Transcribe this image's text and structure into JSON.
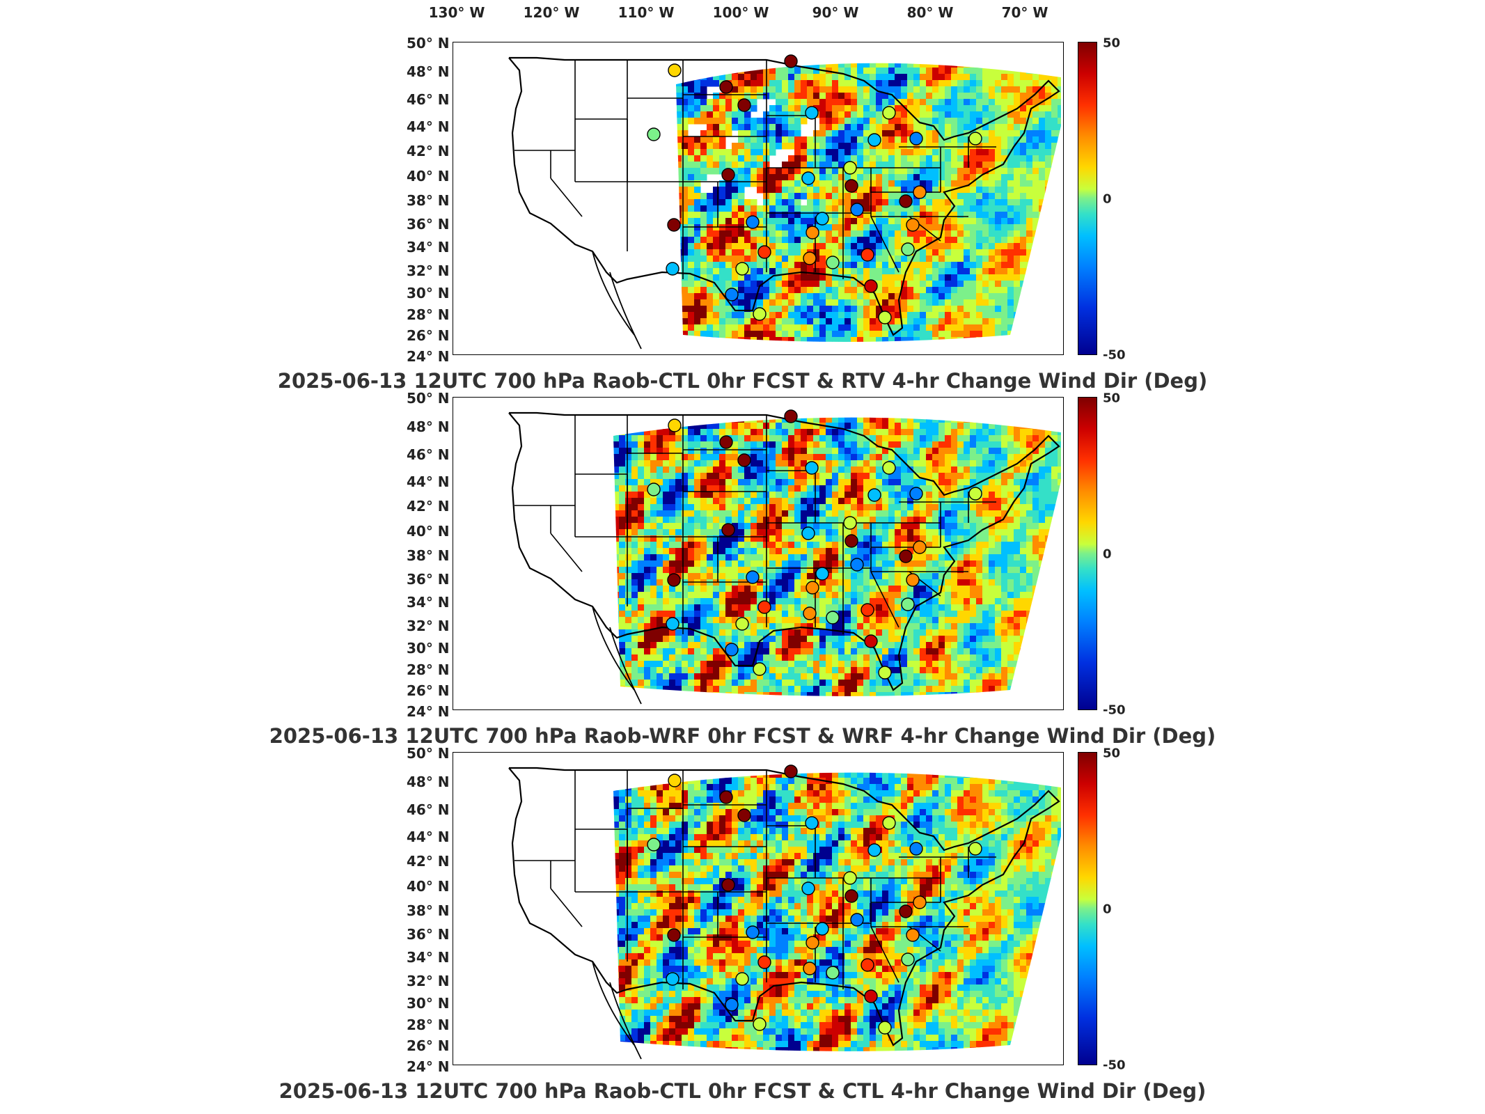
{
  "longitude_labels": [
    "130° W",
    "120° W",
    "110° W",
    "100° W",
    "90° W",
    "80° W",
    "70° W"
  ],
  "latitude_labels": [
    "50° N",
    "48° N",
    "46° N",
    "44° N",
    "42° N",
    "40° N",
    "38° N",
    "36° N",
    "34° N",
    "32° N",
    "30° N",
    "28° N",
    "26° N",
    "24° N"
  ],
  "colorbar": {
    "max_label": "50",
    "mid_label": "0",
    "min_label": "-50",
    "range": [
      -50,
      50
    ]
  },
  "panels": [
    {
      "title": "2025-06-13 12UTC 700 hPa Raob-CTL 0hr FCST & RTV 4-hr Change Wind Dir (Deg)"
    },
    {
      "title": "2025-06-13 12UTC 700 hPa Raob-WRF 0hr FCST & WRF 4-hr Change Wind Dir (Deg)"
    },
    {
      "title": "2025-06-13 12UTC 700 hPa Raob-CTL 0hr FCST & CTL 4-hr Change Wind Dir (Deg)"
    }
  ]
}
